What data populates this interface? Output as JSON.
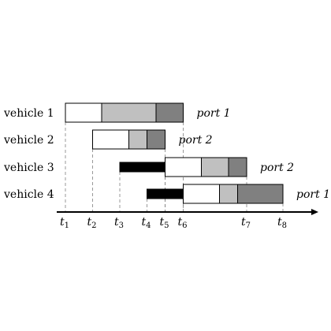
{
  "vehicles": [
    {
      "label": "vehicle 1",
      "port": "port 1",
      "segments": [
        {
          "from": 1,
          "to": 2,
          "fill": "#ffffff"
        },
        {
          "from": 2,
          "to": 3.5,
          "fill": "#c0c0c0"
        },
        {
          "from": 3.5,
          "to": 4.25,
          "fill": "#808080"
        }
      ]
    },
    {
      "label": "vehicle 2",
      "port": "port 2",
      "segments": [
        {
          "from": 1.75,
          "to": 2.75,
          "fill": "#ffffff"
        },
        {
          "from": 2.75,
          "to": 3.25,
          "fill": "#c0c0c0"
        },
        {
          "from": 3.25,
          "to": 3.75,
          "fill": "#808080"
        }
      ]
    },
    {
      "label": "vehicle 3",
      "port": "port 2",
      "segments": [
        {
          "from": 2.5,
          "to": 3.75,
          "fill": "#000000",
          "thin": true
        },
        {
          "from": 3.75,
          "to": 4.75,
          "fill": "#ffffff"
        },
        {
          "from": 4.75,
          "to": 5.5,
          "fill": "#c0c0c0"
        },
        {
          "from": 5.5,
          "to": 6,
          "fill": "#808080"
        }
      ]
    },
    {
      "label": "vehicle 4",
      "port": "port 1",
      "segments": [
        {
          "from": 3.25,
          "to": 4.25,
          "fill": "#000000",
          "thin": true
        },
        {
          "from": 4.25,
          "to": 5.25,
          "fill": "#ffffff"
        },
        {
          "from": 5.25,
          "to": 5.75,
          "fill": "#c0c0c0"
        },
        {
          "from": 5.75,
          "to": 7,
          "fill": "#808080"
        }
      ]
    }
  ],
  "ticks": [
    {
      "letter": "t",
      "sub": "1",
      "at": 1
    },
    {
      "letter": "t",
      "sub": "2",
      "at": 1.75
    },
    {
      "letter": "t",
      "sub": "3",
      "at": 2.5
    },
    {
      "letter": "t",
      "sub": "4",
      "at": 3.25
    },
    {
      "letter": "t",
      "sub": "5",
      "at": 3.75
    },
    {
      "letter": "t",
      "sub": "6",
      "at": 4.25
    },
    {
      "letter": "t",
      "sub": "7",
      "at": 6
    },
    {
      "letter": "t",
      "sub": "8",
      "at": 7
    }
  ],
  "axis_end": 7.5
}
